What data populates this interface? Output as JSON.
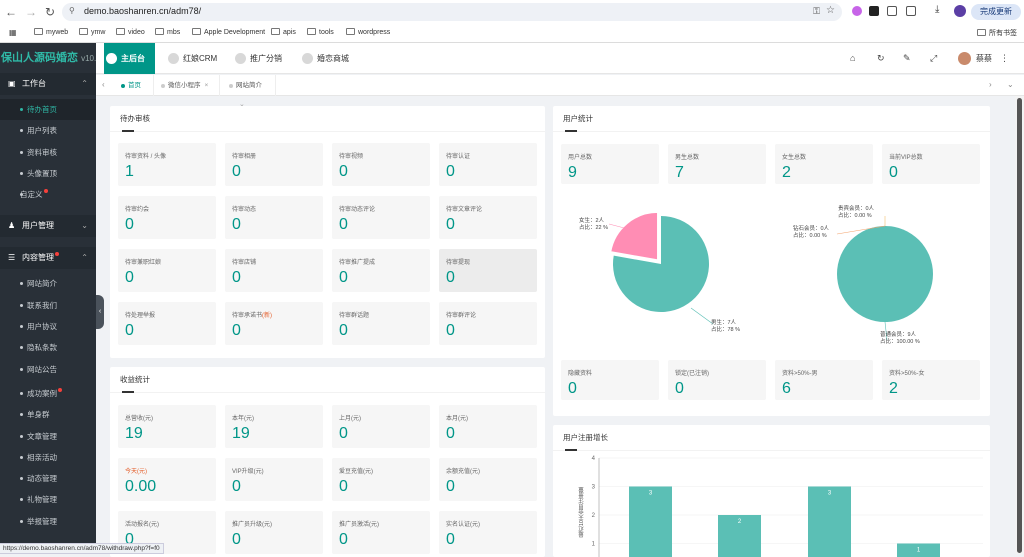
{
  "browser": {
    "url": "demo.baoshanren.cn/adm78/",
    "update_label": "完成更新",
    "bookmarks": [
      "myweb",
      "ymw",
      "video",
      "mbs",
      "Apple Development",
      "apis",
      "tools",
      "wordpress"
    ],
    "all_bookmarks": "所有书签"
  },
  "sidebar": {
    "logo": "保山人源码婚恋",
    "version": "v10.2",
    "groups": [
      {
        "label": "工作台",
        "items": [
          {
            "label": "待办首页",
            "active": true
          },
          {
            "label": "用户列表"
          },
          {
            "label": "资料审核"
          },
          {
            "label": "头像置顶"
          },
          {
            "label": "自定义",
            "dot": true
          }
        ]
      },
      {
        "label": "用户管理",
        "items": []
      },
      {
        "label": "内容管理",
        "dot": true,
        "items": [
          {
            "label": "网站简介"
          },
          {
            "label": "联系我们"
          },
          {
            "label": "用户协议"
          },
          {
            "label": "隐私条款"
          },
          {
            "label": "网站公告"
          },
          {
            "label": "成功案例",
            "dot": true
          },
          {
            "label": "单身群"
          },
          {
            "label": "文章管理"
          },
          {
            "label": "相亲活动"
          },
          {
            "label": "动态管理"
          },
          {
            "label": "礼物管理"
          },
          {
            "label": "举报管理"
          }
        ]
      }
    ]
  },
  "topnav": {
    "modules": [
      "主后台",
      "红娘CRM",
      "推广分销",
      "婚恋商城"
    ],
    "user": "蔡蔡"
  },
  "tabs": [
    {
      "label": "首页",
      "active": true
    },
    {
      "label": "微信小程序"
    },
    {
      "label": "网站简介"
    }
  ],
  "pending": {
    "title": "待办审核",
    "stats": [
      {
        "label": "待审资料 / 头像",
        "value": "1"
      },
      {
        "label": "待审相册",
        "value": "0"
      },
      {
        "label": "待审视频",
        "value": "0"
      },
      {
        "label": "待审认证",
        "value": "0"
      },
      {
        "label": "待审约会",
        "value": "0"
      },
      {
        "label": "待审动态",
        "value": "0"
      },
      {
        "label": "待审动态评论",
        "value": "0"
      },
      {
        "label": "待审文章评论",
        "value": "0"
      },
      {
        "label": "待审兼职红娘",
        "value": "0"
      },
      {
        "label": "待审店铺",
        "value": "0"
      },
      {
        "label": "待审推广提成",
        "value": "0"
      },
      {
        "label": "待审提现",
        "value": "0"
      },
      {
        "label": "待处理举报",
        "value": "0"
      },
      {
        "label": "待审承诺书",
        "label_extra": "(新)",
        "value": "0"
      },
      {
        "label": "待审群话题",
        "value": "0"
      },
      {
        "label": "待审群评论",
        "value": "0"
      }
    ]
  },
  "income": {
    "title": "收益统计",
    "stats": [
      {
        "label": "总营收(元)",
        "value": "19"
      },
      {
        "label": "本年(元)",
        "value": "19"
      },
      {
        "label": "上月(元)",
        "value": "0"
      },
      {
        "label": "本月(元)",
        "value": "0"
      },
      {
        "label": "今天(元)",
        "value": "0.00",
        "red": true
      },
      {
        "label": "VIP升级(元)",
        "value": "0"
      },
      {
        "label": "爱豆充值(元)",
        "value": "0"
      },
      {
        "label": "余额充值(元)",
        "value": "0"
      },
      {
        "label": "活动报名(元)",
        "value": "0"
      },
      {
        "label": "推广员升级(元)",
        "value": "0"
      },
      {
        "label": "推广员激活(元)",
        "value": "0"
      },
      {
        "label": "实名认证(元)",
        "value": "0"
      }
    ]
  },
  "users": {
    "title": "用户统计",
    "top": [
      {
        "label": "用户总数",
        "value": "9"
      },
      {
        "label": "男生总数",
        "value": "7"
      },
      {
        "label": "女生总数",
        "value": "2"
      },
      {
        "label": "当前VIP总数",
        "value": "0"
      }
    ],
    "bottom": [
      {
        "label": "隐藏资料",
        "value": "0"
      },
      {
        "label": "锁定(已注销)",
        "value": "0"
      },
      {
        "label": "资料>50%-男",
        "value": "6"
      },
      {
        "label": "资料>50%-女",
        "value": "2"
      }
    ]
  },
  "register": {
    "title": "用户注册增长",
    "ylabel": "最近10天会员注册量"
  },
  "chart_data": [
    {
      "type": "pie",
      "slices": [
        {
          "name": "男生",
          "count": 7,
          "unit": "人",
          "pct": "78 %",
          "color": "#5bbfb5"
        },
        {
          "name": "女生",
          "count": 2,
          "unit": "人",
          "pct": "22 %",
          "color": "#ff8db4"
        }
      ],
      "labels": {
        "male": [
          "男生：7人",
          "占比：78 %"
        ],
        "female": [
          "女生：2人",
          "占比：22 %"
        ]
      }
    },
    {
      "type": "pie",
      "slices": [
        {
          "name": "普通会员",
          "count": 9,
          "unit": "人",
          "pct": "100.00 %",
          "color": "#5bbfb5"
        },
        {
          "name": "钻石会员",
          "count": 0,
          "unit": "人",
          "pct": "0.00 %",
          "color": "#f4a36c"
        },
        {
          "name": "贵宾会员",
          "count": 0,
          "unit": "人",
          "pct": "0.00 %",
          "color": "#f2c16f"
        }
      ],
      "labels": {
        "normal": [
          "普通会员：9人",
          "占比：100.00 %"
        ],
        "diamond": [
          "钻石会员：0人",
          "占比：0.00 %"
        ],
        "vip": [
          "贵宾会员：0人",
          "占比：0.00 %"
        ]
      }
    },
    {
      "type": "bar",
      "ylabel": "最近10天会员注册量",
      "ylim": [
        0,
        4
      ],
      "yticks": [
        "1",
        "2",
        "3",
        "4"
      ],
      "values": [
        3,
        2,
        3,
        1
      ],
      "color": "#5bbfb5"
    }
  ],
  "status_url": "https://demo.baoshanren.cn/adm78/withdraw.php?f=f0"
}
